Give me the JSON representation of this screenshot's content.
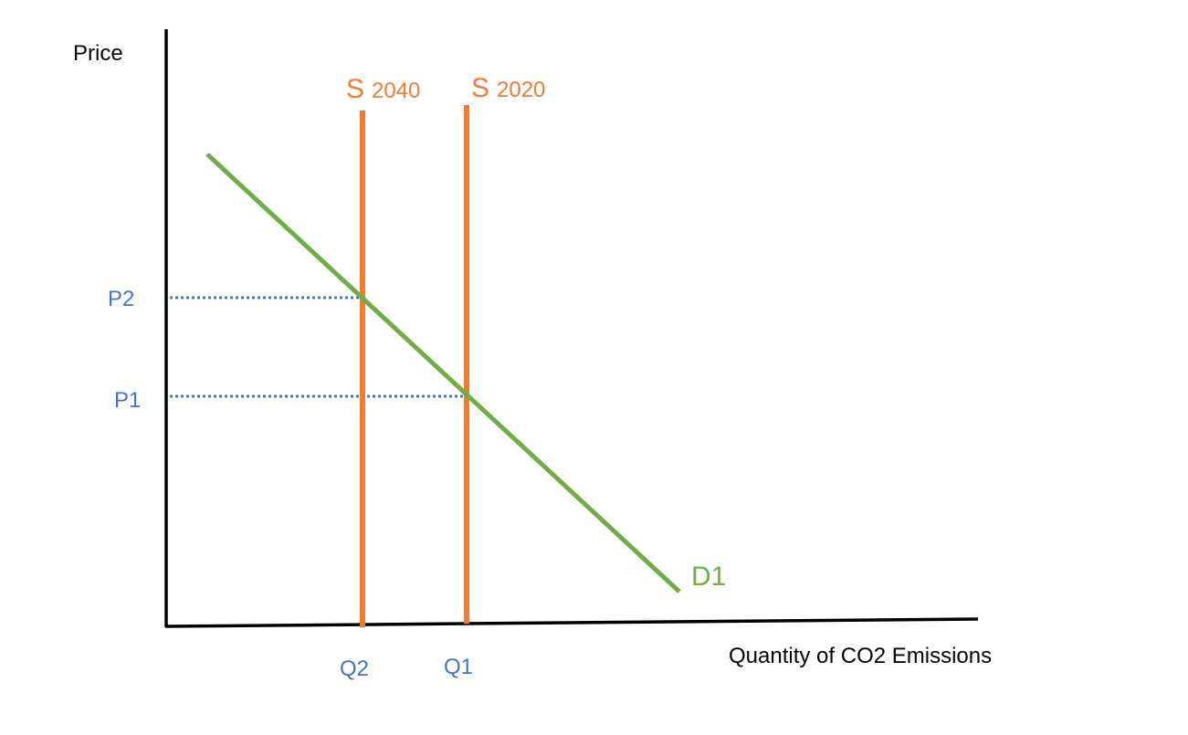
{
  "labels": {
    "y_axis": "Price",
    "x_axis": "Quantity of CO2 Emissions",
    "supply_2040_letter": "S",
    "supply_2040_year": "2040",
    "supply_2020_letter": "S",
    "supply_2020_year": "2020",
    "demand": "D1",
    "p1": "P1",
    "p2": "P2",
    "q1": "Q1",
    "q2": "Q2"
  },
  "colors": {
    "axis": "#000000",
    "supply": "#ED7D31",
    "demand": "#70AD47",
    "guide": "#4472C4"
  }
}
